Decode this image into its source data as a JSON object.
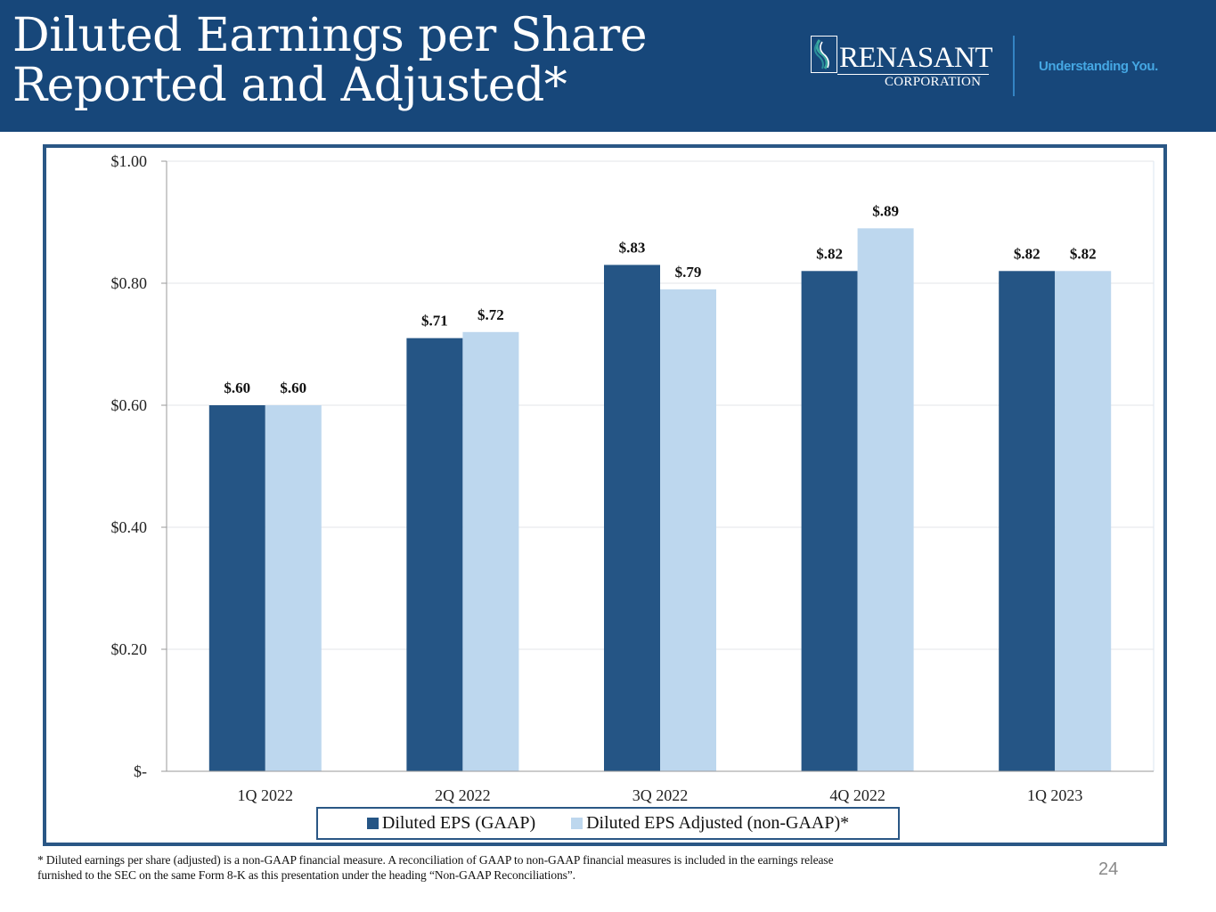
{
  "header": {
    "title_lines": [
      "Diluted Earnings per Share",
      "Reported and Adjusted*"
    ],
    "logo_name": "RENASANT",
    "logo_sub": "CORPORATION",
    "tagline": "Understanding You.",
    "background_color": "#17477a",
    "tagline_color": "#45a7e3"
  },
  "chart_data": {
    "type": "bar",
    "title": "",
    "xlabel": "",
    "ylabel": "",
    "categories": [
      "1Q 2022",
      "2Q 2022",
      "3Q 2022",
      "4Q 2022",
      "1Q 2023"
    ],
    "series": [
      {
        "name": "Diluted EPS (GAAP)",
        "color": "#255585",
        "values": [
          0.6,
          0.71,
          0.83,
          0.82,
          0.82
        ],
        "labels": [
          "$.60",
          "$.71",
          "$.83",
          "$.82",
          "$.82"
        ]
      },
      {
        "name": "Diluted EPS Adjusted (non-GAAP)*",
        "color": "#bdd7ee",
        "values": [
          0.6,
          0.72,
          0.79,
          0.89,
          0.82
        ],
        "labels": [
          "$.60",
          "$.72",
          "$.79",
          "$.89",
          "$.82"
        ]
      }
    ],
    "ylim": [
      0,
      1.0
    ],
    "yticks": [
      0,
      0.2,
      0.4,
      0.6,
      0.8,
      1.0
    ],
    "ytick_labels": [
      "$-",
      "$0.20",
      "$0.40",
      "$0.60",
      "$0.80",
      "$1.00"
    ],
    "grid": true,
    "legend_position": "bottom"
  },
  "footnote": {
    "line1": "* Diluted earnings per share (adjusted) is a non-GAAP financial measure. A reconciliation of GAAP to non-GAAP financial measures is included in the earnings release",
    "line2": "furnished to the SEC on the same Form 8-K as this presentation under the heading “Non-GAAP Reconciliations”."
  },
  "page_number": "24"
}
